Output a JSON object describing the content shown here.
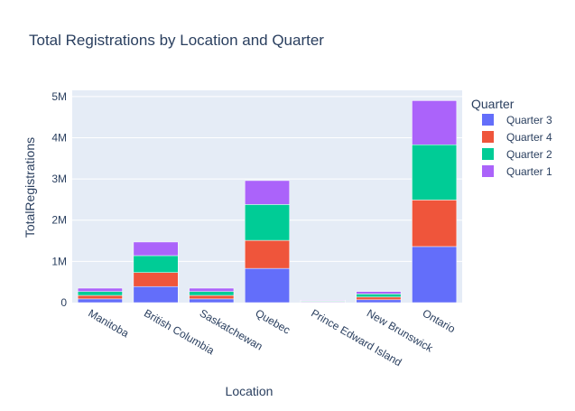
{
  "chart_data": {
    "type": "bar",
    "barmode": "stack",
    "title": "Total Registrations by Location and Quarter",
    "xlabel": "Location",
    "ylabel": "TotalRegistrations",
    "categories": [
      "Manitoba",
      "British Columbia",
      "Saskatchewan",
      "Quebec",
      "Prince Edward Island",
      "New Brunswick",
      "Ontario"
    ],
    "ylim": [
      0,
      5150000
    ],
    "yticks": [
      0,
      1000000,
      2000000,
      3000000,
      4000000,
      5000000
    ],
    "ytick_labels": [
      "0",
      "1M",
      "2M",
      "3M",
      "4M",
      "5M"
    ],
    "grid": true,
    "legend": {
      "title": "Quarter",
      "placement": "top-right outside plot"
    },
    "series": [
      {
        "name": "Quarter 3",
        "color": "#636efa",
        "values": [
          90000,
          390000,
          90000,
          830000,
          15000,
          70000,
          1360000
        ]
      },
      {
        "name": "Quarter 4",
        "color": "#ef553b",
        "values": [
          85000,
          340000,
          85000,
          680000,
          15000,
          65000,
          1130000
        ]
      },
      {
        "name": "Quarter 2",
        "color": "#00cc96",
        "values": [
          95000,
          410000,
          95000,
          870000,
          15000,
          75000,
          1340000
        ]
      },
      {
        "name": "Quarter 1",
        "color": "#ab63fa",
        "values": [
          80000,
          330000,
          80000,
          580000,
          15000,
          60000,
          1070000
        ]
      }
    ]
  }
}
